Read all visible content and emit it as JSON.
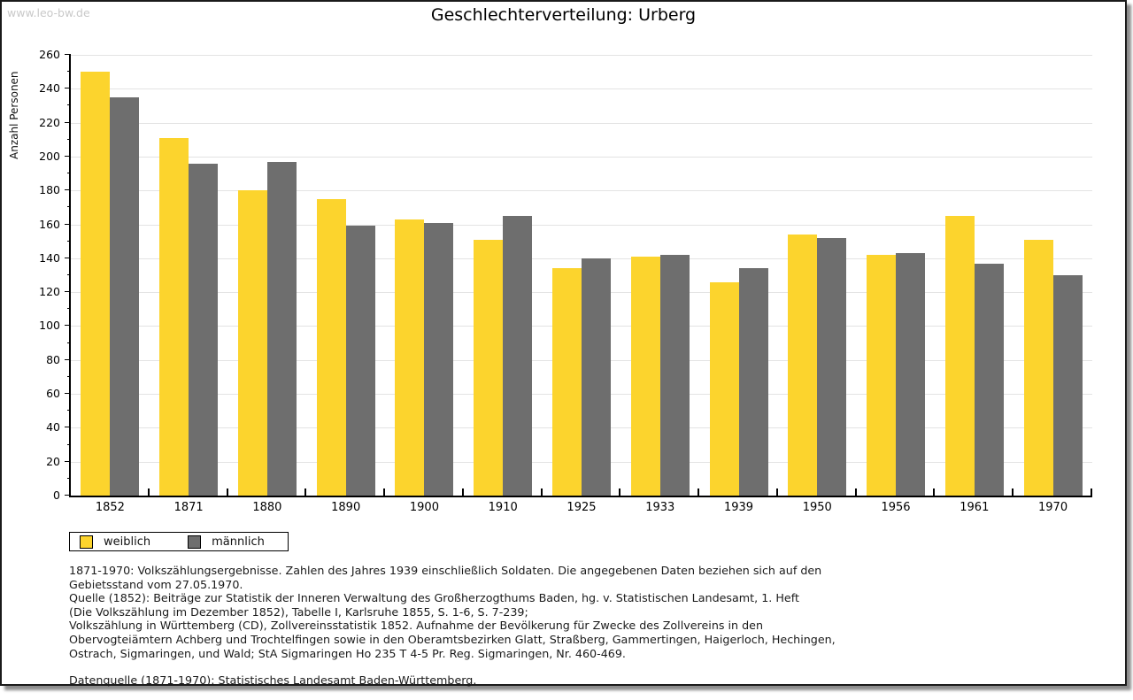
{
  "watermark": "www.leo-bw.de",
  "chart_data": {
    "type": "bar",
    "title": "Geschlechterverteilung: Urberg",
    "xlabel": "",
    "ylabel": "Anzahl Personen",
    "ylim": [
      0,
      260
    ],
    "ytick_step": 20,
    "ytick_minor_step": 10,
    "yticks": [
      0,
      20,
      40,
      60,
      80,
      100,
      120,
      140,
      160,
      180,
      200,
      220,
      240,
      260
    ],
    "grid": true,
    "legend_position": "bottom-left",
    "categories": [
      "1852",
      "1871",
      "1880",
      "1890",
      "1900",
      "1910",
      "1925",
      "1933",
      "1939",
      "1950",
      "1956",
      "1961",
      "1970"
    ],
    "series": [
      {
        "name": "weiblich",
        "color": "#FCD42D",
        "values": [
          250,
          211,
          180,
          175,
          163,
          151,
          134,
          141,
          126,
          154,
          142,
          165,
          151
        ]
      },
      {
        "name": "männlich",
        "color": "#6E6E6E",
        "values": [
          235,
          196,
          197,
          159,
          161,
          165,
          140,
          142,
          134,
          152,
          143,
          137,
          130
        ]
      }
    ]
  },
  "legend": {
    "items": [
      {
        "label": "weiblich",
        "color": "#FCD42D"
      },
      {
        "label": "männlich",
        "color": "#6E6E6E"
      }
    ]
  },
  "footnotes": [
    "1871-1970: Volkszählungsergebnisse. Zahlen des Jahres 1939 einschließlich Soldaten. Die angegebenen Daten beziehen sich auf den",
    "Gebietsstand vom 27.05.1970.",
    "Quelle (1852): Beiträge zur Statistik der Inneren Verwaltung des Großherzogthums Baden, hg. v. Statistischen Landesamt, 1. Heft",
    "(Die Volkszählung im Dezember 1852), Tabelle I, Karlsruhe 1855, S. 1-6, S. 7-239;",
    "Volkszählung in Württemberg (CD), Zollvereinsstatistik 1852. Aufnahme der Bevölkerung für Zwecke des Zollvereins in den",
    "Obervogteiämtern Achberg und Trochtelfingen sowie in den Oberamtsbezirken Glatt, Straßberg, Gammertingen, Haigerloch, Hechingen,",
    "Ostrach, Sigmaringen, und Wald; StA Sigmaringen Ho 235 T 4-5 Pr. Reg. Sigmaringen, Nr. 460-469."
  ],
  "source_line": "Datenquelle (1871-1970): Statistisches Landesamt Baden-Württemberg."
}
